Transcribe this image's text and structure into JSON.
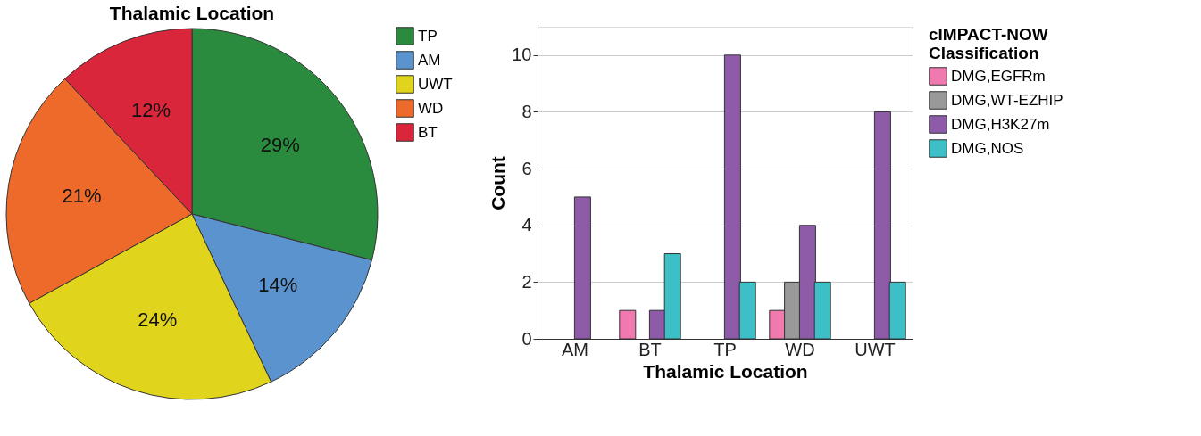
{
  "chart_data": [
    {
      "type": "pie",
      "title": "Thalamic Location",
      "categories": [
        "TP",
        "AM",
        "UWT",
        "WD",
        "BT"
      ],
      "values": [
        29,
        14,
        24,
        21,
        12
      ],
      "colors": [
        "#2a8a3e",
        "#5b93cf",
        "#e0d51c",
        "#ee6a2a",
        "#d9263a"
      ],
      "value_labels": [
        "29%",
        "14%",
        "24%",
        "21%",
        "12%"
      ],
      "legend": "right"
    },
    {
      "type": "bar",
      "categories": [
        "AM",
        "BT",
        "TP",
        "WD",
        "UWT"
      ],
      "xlabel": "Thalamic Location",
      "ylabel": "Count",
      "legend_title": "cIMPACT-NOW Classification",
      "ylim": [
        0,
        11
      ],
      "yticks": [
        0,
        2,
        4,
        6,
        8,
        10
      ],
      "grid": "y",
      "legend": "right",
      "series": [
        {
          "name": "DMG,EGFRm",
          "color": "#f07ab0",
          "values": [
            null,
            1,
            null,
            1,
            null
          ]
        },
        {
          "name": "DMG,WT-EZHIP",
          "color": "#999999",
          "values": [
            null,
            null,
            null,
            2,
            null
          ]
        },
        {
          "name": "DMG,H3K27m",
          "color": "#8e5ba8",
          "values": [
            5,
            1,
            10,
            4,
            8
          ]
        },
        {
          "name": "DMG,NOS",
          "color": "#3cbfc6",
          "values": [
            null,
            3,
            2,
            2,
            2
          ]
        }
      ]
    }
  ]
}
